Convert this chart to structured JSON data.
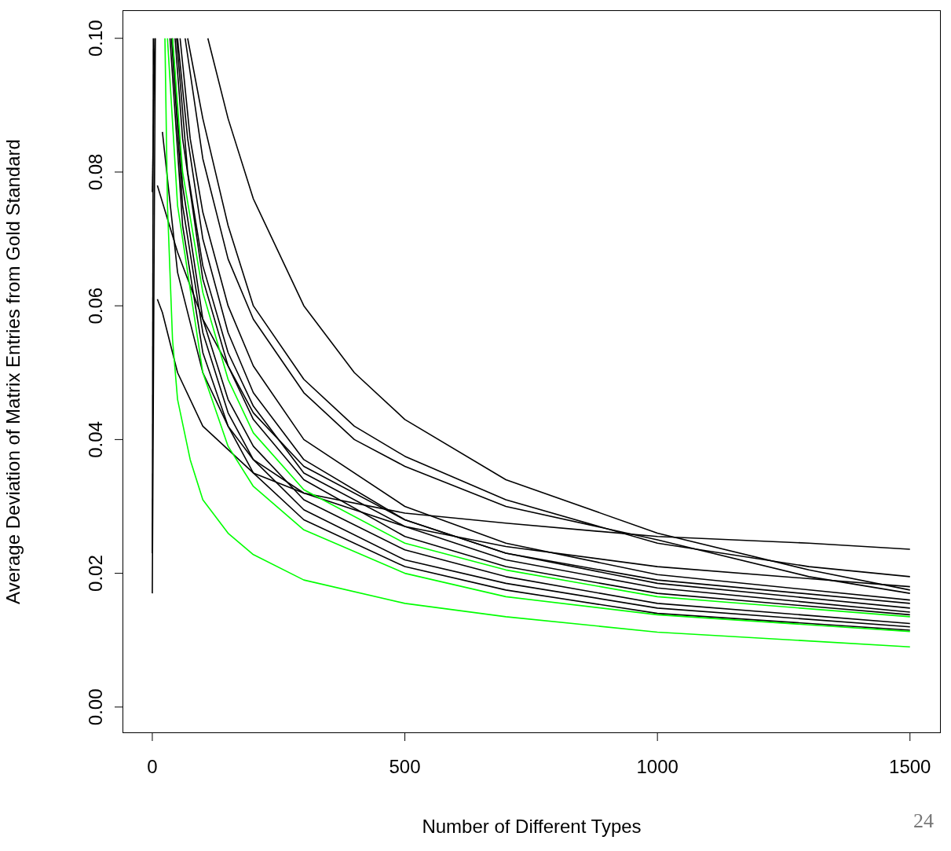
{
  "chart_data": {
    "type": "line",
    "xlabel": "Number of Different Types",
    "ylabel": "Average Deviation of Matrix Entries from Gold Standard",
    "xlim": [
      -59,
      1561
    ],
    "ylim": [
      -0.0039,
      0.1042
    ],
    "xticks": [
      0,
      500,
      1000,
      1500
    ],
    "yticks": [
      {
        "value": 0,
        "label": "0.00"
      },
      {
        "value": 0.02,
        "label": "0.02"
      },
      {
        "value": 0.04,
        "label": "0.04"
      },
      {
        "value": 0.06,
        "label": "0.06"
      },
      {
        "value": 0.08,
        "label": "0.08"
      },
      {
        "value": 0.1,
        "label": "0.10"
      }
    ],
    "annotations": [
      "24"
    ],
    "series": [
      {
        "color": "#000000",
        "x": [
          110,
          150,
          200,
          300,
          400,
          500,
          700,
          1000,
          1300,
          1500
        ],
        "values": [
          0.1,
          0.088,
          0.076,
          0.06,
          0.05,
          0.043,
          0.034,
          0.026,
          0.0205,
          0.0175
        ]
      },
      {
        "color": "#000000",
        "x": [
          65,
          100,
          150,
          200,
          300,
          400,
          500,
          700,
          1000,
          1300,
          1500
        ],
        "values": [
          0.1,
          0.082,
          0.067,
          0.058,
          0.047,
          0.04,
          0.036,
          0.03,
          0.025,
          0.0195,
          0.017
        ]
      },
      {
        "color": "#000000",
        "x": [
          70,
          100,
          150,
          200,
          300,
          400,
          500,
          700,
          1000,
          1300,
          1500
        ],
        "values": [
          0.1,
          0.088,
          0.072,
          0.06,
          0.049,
          0.042,
          0.0375,
          0.031,
          0.0245,
          0.021,
          0.0195
        ]
      },
      {
        "color": "#000000",
        "x": [
          10,
          20,
          50,
          100,
          200,
          300,
          500,
          700,
          1000,
          1300,
          1500
        ],
        "values": [
          0.061,
          0.059,
          0.05,
          0.042,
          0.035,
          0.032,
          0.029,
          0.0275,
          0.0255,
          0.0245,
          0.0236
        ]
      },
      {
        "color": "#000000",
        "x": [
          40,
          60,
          100,
          150,
          200,
          300,
          500,
          700,
          1000,
          1500
        ],
        "values": [
          0.1,
          0.078,
          0.058,
          0.046,
          0.039,
          0.031,
          0.0235,
          0.0195,
          0.0155,
          0.0125
        ]
      },
      {
        "color": "#000000",
        "x": [
          45,
          60,
          100,
          150,
          200,
          300,
          500,
          700,
          1000,
          1500
        ],
        "values": [
          0.1,
          0.085,
          0.064,
          0.051,
          0.043,
          0.034,
          0.0255,
          0.021,
          0.017,
          0.0138
        ]
      },
      {
        "color": "#000000",
        "x": [
          50,
          70,
          100,
          150,
          200,
          300,
          500,
          700,
          1000,
          1500
        ],
        "values": [
          0.1,
          0.085,
          0.07,
          0.056,
          0.047,
          0.037,
          0.028,
          0.023,
          0.0185,
          0.0148
        ]
      },
      {
        "color": "#000000",
        "x": [
          55,
          75,
          100,
          150,
          200,
          300,
          500,
          700,
          1000,
          1500
        ],
        "values": [
          0.1,
          0.085,
          0.074,
          0.06,
          0.051,
          0.04,
          0.03,
          0.0245,
          0.0198,
          0.016
        ]
      },
      {
        "color": "#000000",
        "x": [
          35,
          60,
          100,
          150,
          200,
          300,
          500,
          700,
          1000,
          1500
        ],
        "values": [
          0.1,
          0.072,
          0.053,
          0.042,
          0.035,
          0.028,
          0.021,
          0.0175,
          0.014,
          0.0115
        ]
      },
      {
        "color": "#000000",
        "x": [
          38,
          60,
          100,
          150,
          200,
          300,
          500,
          700,
          1000,
          1500
        ],
        "values": [
          0.1,
          0.075,
          0.056,
          0.044,
          0.037,
          0.0295,
          0.022,
          0.0185,
          0.0148,
          0.012
        ]
      },
      {
        "color": "#000000",
        "x": [
          48,
          70,
          100,
          150,
          200,
          300,
          500,
          700,
          1000,
          1500
        ],
        "values": [
          0.1,
          0.08,
          0.066,
          0.053,
          0.045,
          0.035,
          0.027,
          0.022,
          0.0178,
          0.0142
        ]
      },
      {
        "color": "#000000",
        "x": [
          20,
          50,
          100,
          150,
          200,
          300,
          500,
          700,
          1000,
          1500
        ],
        "values": [
          0.086,
          0.065,
          0.05,
          0.042,
          0.037,
          0.032,
          0.027,
          0.024,
          0.021,
          0.018
        ]
      },
      {
        "color": "#000000",
        "x": [
          10,
          50,
          100,
          200,
          300,
          500,
          700,
          1000,
          1500
        ],
        "values": [
          0.078,
          0.068,
          0.058,
          0.044,
          0.036,
          0.028,
          0.023,
          0.019,
          0.0155
        ]
      },
      {
        "color": "#000000",
        "x": [
          0,
          3,
          6
        ],
        "values": [
          0.017,
          0.06,
          0.1
        ]
      },
      {
        "color": "#000000",
        "x": [
          0,
          2
        ],
        "values": [
          0.023,
          0.1
        ]
      },
      {
        "color": "#000000",
        "x": [
          0,
          5
        ],
        "values": [
          0.077,
          0.1
        ]
      },
      {
        "color": "#00ff00",
        "x": [
          25,
          30,
          40,
          50,
          75,
          100,
          150,
          200,
          300,
          500,
          700,
          1000,
          1500
        ],
        "values": [
          0.1,
          0.075,
          0.055,
          0.046,
          0.037,
          0.031,
          0.026,
          0.0228,
          0.019,
          0.0155,
          0.0135,
          0.0112,
          0.009
        ]
      },
      {
        "color": "#00ff00",
        "x": [
          30,
          50,
          100,
          150,
          200,
          300,
          500,
          700,
          1000,
          1500
        ],
        "values": [
          0.1,
          0.075,
          0.05,
          0.039,
          0.033,
          0.0265,
          0.02,
          0.0165,
          0.0138,
          0.0113
        ]
      },
      {
        "color": "#00ff00",
        "x": [
          40,
          60,
          100,
          150,
          200,
          300,
          500,
          700,
          1000,
          1500
        ],
        "values": [
          0.1,
          0.08,
          0.062,
          0.049,
          0.041,
          0.0325,
          0.0245,
          0.0205,
          0.0165,
          0.0135
        ]
      }
    ]
  }
}
